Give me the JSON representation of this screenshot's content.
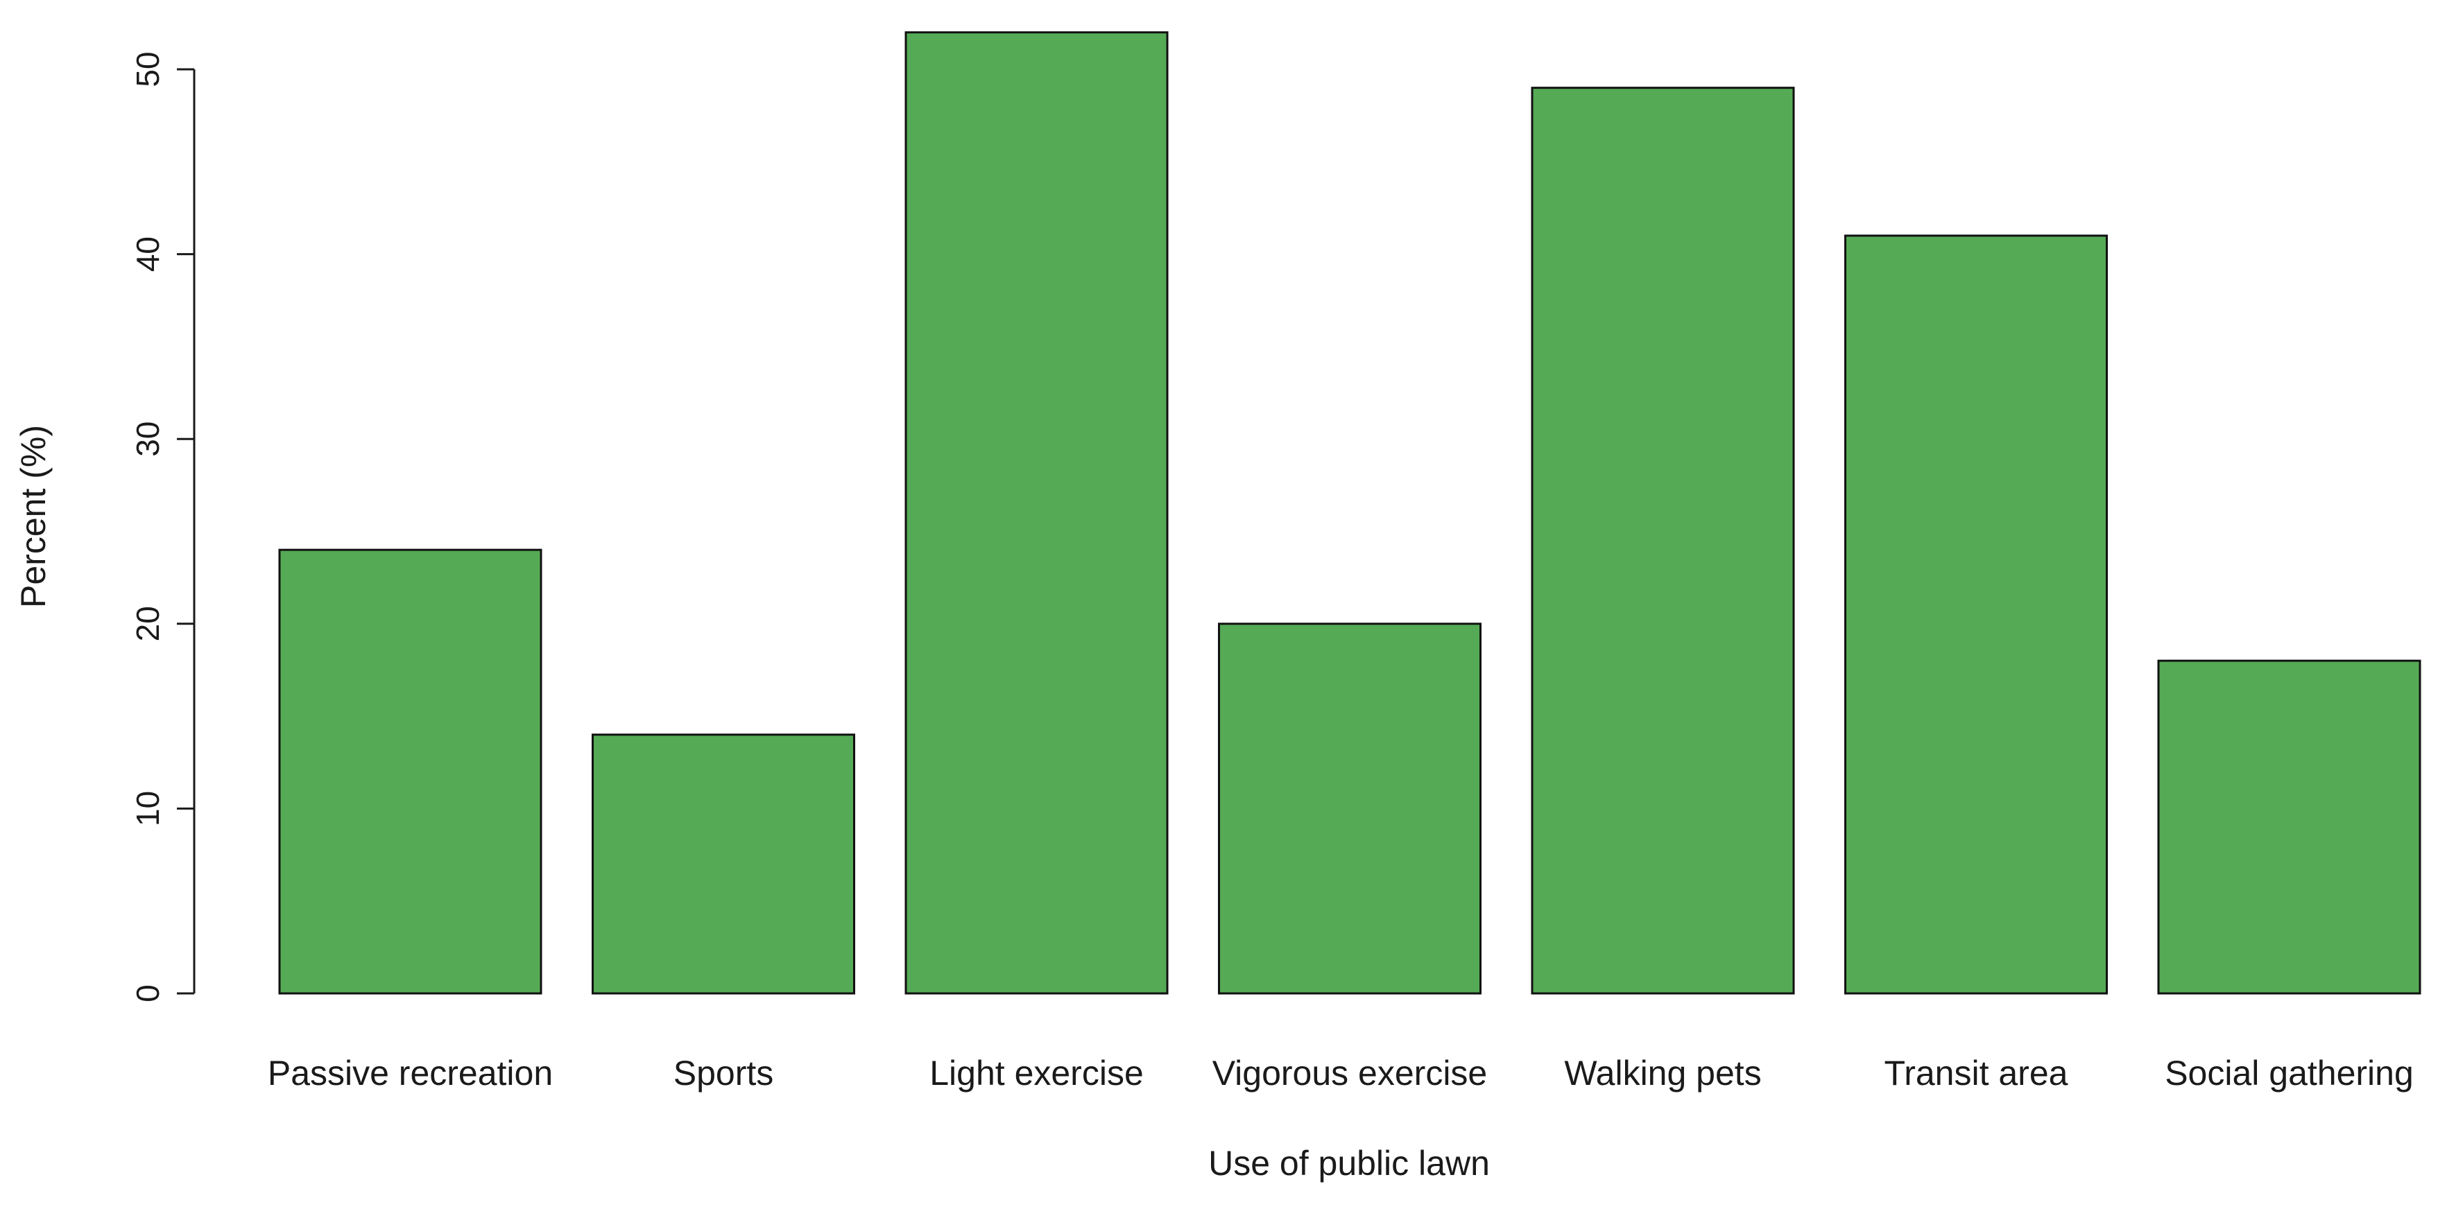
{
  "chart_data": {
    "type": "bar",
    "title": "",
    "xlabel": "Use of public lawn",
    "ylabel": "Percent (%)",
    "categories": [
      "Passive recreation",
      "Sports",
      "Light exercise",
      "Vigorous exercise",
      "Walking pets",
      "Transit area",
      "Social gathering"
    ],
    "values": [
      24,
      14,
      52,
      20,
      49,
      41,
      18
    ],
    "yticks": [
      "0",
      "10",
      "20",
      "30",
      "40",
      "50"
    ],
    "ylim": [
      0,
      52
    ],
    "grid": false,
    "legend": "none",
    "colors": {
      "bar_fill": "#55aa55",
      "bar_stroke": "#111111",
      "axis": "#1a1a1a"
    }
  }
}
